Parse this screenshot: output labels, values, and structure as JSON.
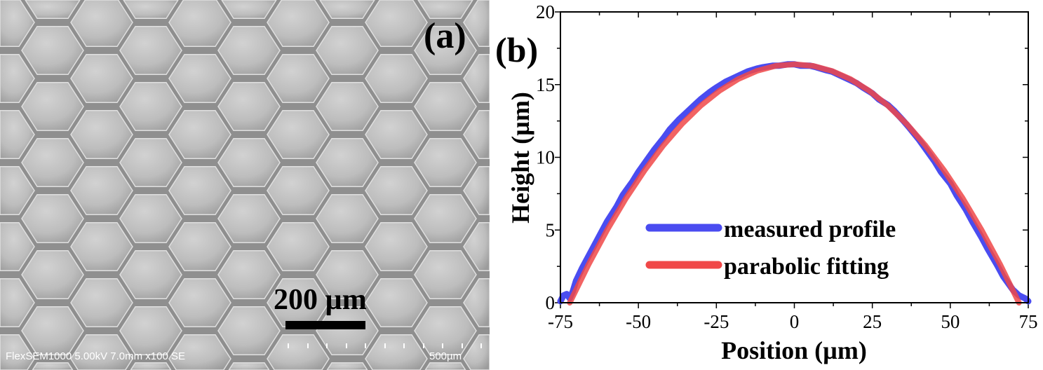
{
  "panel_a": {
    "label": "(a)",
    "scale_bar_text": "200 µm",
    "instrument_info": "FlexSEM1000 5.00kV 7.0mm x100 SE",
    "micron_marker": "500µm"
  },
  "chart_data": {
    "type": "line",
    "panel_label": "(b)",
    "xlabel": "Position (µm)",
    "ylabel": "Height (µm)",
    "xlim": [
      -75,
      75
    ],
    "ylim": [
      0,
      20
    ],
    "xticks": [
      -75,
      -50,
      -25,
      0,
      25,
      50,
      75
    ],
    "yticks": [
      0,
      5,
      10,
      15,
      20
    ],
    "grid": false,
    "legend_placement": "bottom-center",
    "series": [
      {
        "name": "measured profile",
        "color": "#4a4cf0",
        "x": [
          -75,
          -74,
          -73,
          -72,
          -71,
          -70,
          -68,
          -65,
          -62,
          -60,
          -57,
          -55,
          -52,
          -50,
          -47,
          -45,
          -42,
          -40,
          -37,
          -35,
          -32,
          -30,
          -27,
          -25,
          -22,
          -20,
          -17,
          -15,
          -12,
          -10,
          -7,
          -5,
          -2,
          0,
          2,
          5,
          7,
          10,
          12,
          15,
          17,
          20,
          22,
          25,
          27,
          30,
          32,
          35,
          37,
          40,
          42,
          45,
          47,
          50,
          52,
          55,
          57,
          60,
          62,
          65,
          67,
          70,
          72,
          73,
          74,
          75
        ],
        "y": [
          0.1,
          0.5,
          0.6,
          0.3,
          0.8,
          1.5,
          2.4,
          3.6,
          4.8,
          5.6,
          6.6,
          7.4,
          8.3,
          9.0,
          9.9,
          10.5,
          11.3,
          11.9,
          12.6,
          13.0,
          13.6,
          14.0,
          14.5,
          14.8,
          15.2,
          15.4,
          15.7,
          15.9,
          16.1,
          16.2,
          16.3,
          16.3,
          16.4,
          16.4,
          16.3,
          16.3,
          16.2,
          16.0,
          15.9,
          15.6,
          15.4,
          15.1,
          14.8,
          14.4,
          14.0,
          13.6,
          13.2,
          12.5,
          12.0,
          11.2,
          10.6,
          9.7,
          9.0,
          8.2,
          7.4,
          6.4,
          5.6,
          4.5,
          3.7,
          2.6,
          1.8,
          0.9,
          0.5,
          0.4,
          0.3,
          0.1
        ]
      },
      {
        "name": "parabolic fitting",
        "color": "#f04848",
        "model": "h = 16.4 (1 - (x/72)^2)",
        "x": [
          -72,
          -66,
          -60,
          -54,
          -48,
          -42,
          -36,
          -30,
          -24,
          -18,
          -12,
          -6,
          0,
          6,
          12,
          18,
          24,
          30,
          36,
          42,
          48,
          54,
          60,
          66,
          72
        ],
        "y": [
          0,
          2.62,
          5.01,
          7.18,
          9.11,
          10.82,
          12.3,
          13.55,
          14.58,
          15.38,
          15.94,
          16.29,
          16.4,
          16.29,
          15.94,
          15.38,
          14.58,
          13.55,
          12.3,
          10.82,
          9.11,
          7.18,
          5.01,
          2.62,
          0
        ]
      }
    ]
  }
}
